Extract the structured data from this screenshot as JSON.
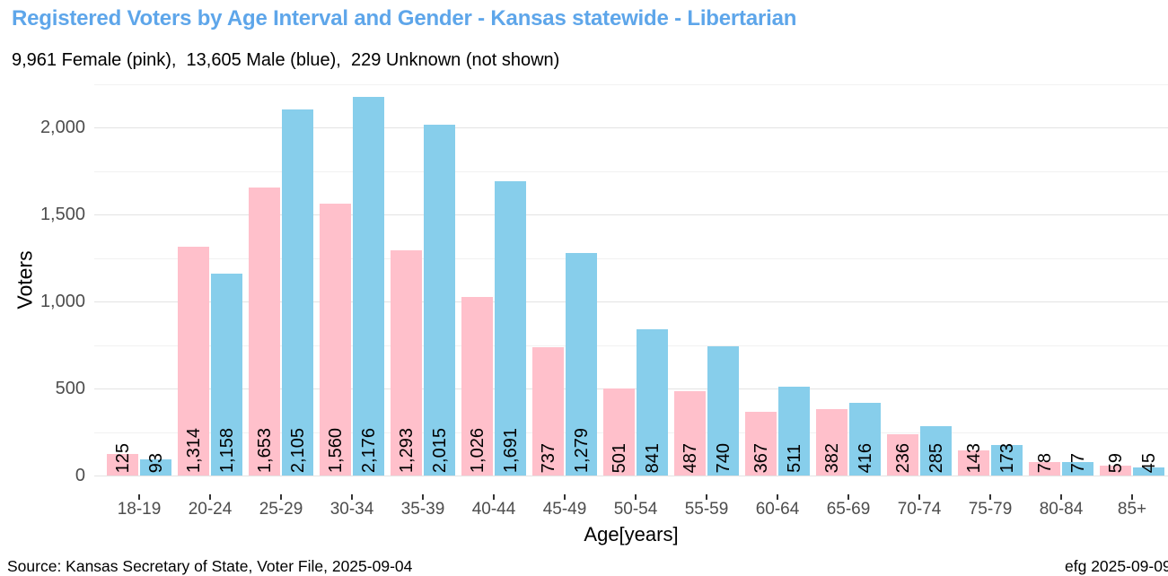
{
  "title": "Registered Voters by Age Interval and Gender - Kansas statewide - Libertarian",
  "subtitle": "9,961 Female (pink),  13,605 Male (blue),  229 Unknown (not shown)",
  "footer": {
    "source": "Source: Kansas Secretary of State, Voter File, 2025-09-04",
    "credit": "efg 2025-09-09"
  },
  "colors": {
    "title": "#5ea6ea",
    "female": "#ffc0cb",
    "male": "#87ceeb",
    "grid_major": "#e3e3e3",
    "grid_minor": "#f1f1f1",
    "axis_text": "#4d4d4d",
    "tick_mark": "#333333"
  },
  "chart_data": {
    "type": "bar",
    "title": "Registered Voters by Age Interval and Gender - Kansas statewide - Libertarian",
    "subtitle": "9,961 Female (pink),  13,605 Male (blue),  229 Unknown (not shown)",
    "xlabel": "Age[years]",
    "ylabel": "Voters",
    "categories": [
      "18-19",
      "20-24",
      "25-29",
      "30-34",
      "35-39",
      "40-44",
      "45-49",
      "50-54",
      "55-59",
      "60-64",
      "65-69",
      "70-74",
      "75-79",
      "80-84",
      "85+"
    ],
    "series": [
      {
        "name": "Female",
        "color": "#ffc0cb",
        "values": [
          125,
          1314,
          1653,
          1560,
          1293,
          1026,
          737,
          501,
          487,
          367,
          382,
          236,
          143,
          78,
          59
        ],
        "labels": [
          "125",
          "1,314",
          "1,653",
          "1,560",
          "1,293",
          "1,026",
          "737",
          "501",
          "487",
          "367",
          "382",
          "236",
          "143",
          "78",
          "59"
        ]
      },
      {
        "name": "Male",
        "color": "#87ceeb",
        "values": [
          93,
          1158,
          2105,
          2176,
          2015,
          1691,
          1279,
          841,
          740,
          511,
          416,
          285,
          173,
          77,
          45
        ],
        "labels": [
          "93",
          "1,158",
          "2,105",
          "2,176",
          "2,015",
          "1,691",
          "1,279",
          "841",
          "740",
          "511",
          "416",
          "285",
          "173",
          "77",
          "45"
        ]
      }
    ],
    "totals": {
      "female": "9,961",
      "male": "13,605",
      "unknown": "229"
    },
    "y_ticks": [
      {
        "value": 0,
        "label": "0"
      },
      {
        "value": 500,
        "label": "500"
      },
      {
        "value": 1000,
        "label": "1,000"
      },
      {
        "value": 1500,
        "label": "1,500"
      },
      {
        "value": 2000,
        "label": "2,000"
      }
    ],
    "y_minor": [
      250,
      750,
      1250,
      1750,
      2250
    ],
    "ylim": [
      0,
      2265
    ],
    "grid": true,
    "legend_position": "none",
    "bar_label_angle": 90
  }
}
